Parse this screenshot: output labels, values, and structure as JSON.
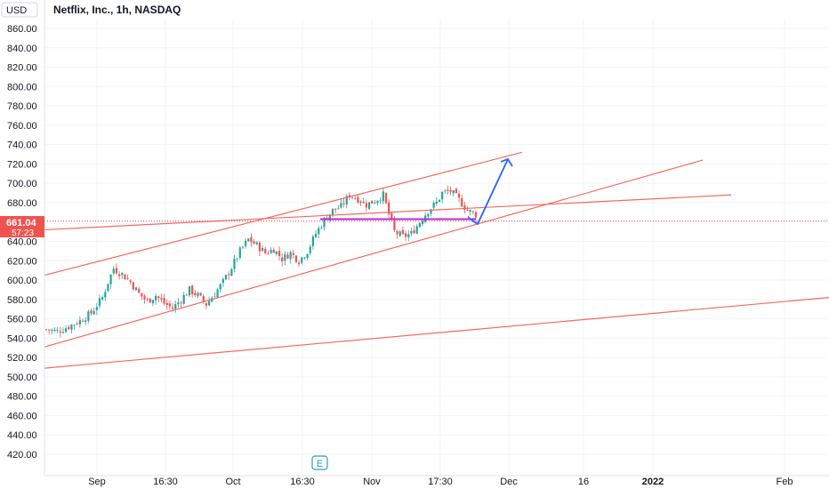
{
  "header": {
    "currency": "USD",
    "title": "Netflix, Inc., 1h, NASDAQ"
  },
  "price_badge": {
    "price": "661.04",
    "countdown": "57:23",
    "color": "#ef5350"
  },
  "earnings_marker": {
    "label": "E",
    "color": "#26a69a"
  },
  "colors": {
    "up": "#26a69a",
    "down": "#ef5350",
    "trend": "#f26b5f",
    "support": "#c026d3",
    "projection": "#2962ff",
    "grid": "#f0f3fa"
  },
  "chart_data": {
    "type": "candlestick",
    "title": "Netflix, Inc., 1h, NASDAQ",
    "ylim": [
      405,
      872
    ],
    "y_ticks": [
      "860.00",
      "840.00",
      "820.00",
      "800.00",
      "780.00",
      "760.00",
      "740.00",
      "720.00",
      "700.00",
      "680.00",
      "660.00",
      "640.00",
      "620.00",
      "600.00",
      "580.00",
      "560.00",
      "540.00",
      "520.00",
      "500.00",
      "480.00",
      "460.00",
      "440.00",
      "420.00"
    ],
    "x_ticks": [
      {
        "label": "Sep",
        "bold": false
      },
      {
        "label": "16:30",
        "bold": false
      },
      {
        "label": "Oct",
        "bold": false
      },
      {
        "label": "16:30",
        "bold": false
      },
      {
        "label": "Nov",
        "bold": false
      },
      {
        "label": "17:30",
        "bold": false
      },
      {
        "label": "Dec",
        "bold": false
      },
      {
        "label": "16",
        "bold": false
      },
      {
        "label": "2022",
        "bold": true
      },
      {
        "label": "Feb",
        "bold": false
      }
    ],
    "price_path": [
      [
        0,
        549
      ],
      [
        4,
        547
      ],
      [
        8,
        552
      ],
      [
        12,
        558
      ],
      [
        16,
        566
      ],
      [
        20,
        582
      ],
      [
        22,
        598
      ],
      [
        24,
        612
      ],
      [
        27,
        606
      ],
      [
        30,
        598
      ],
      [
        33,
        586
      ],
      [
        36,
        578
      ],
      [
        39,
        584
      ],
      [
        42,
        576
      ],
      [
        45,
        571
      ],
      [
        48,
        580
      ],
      [
        51,
        590
      ],
      [
        54,
        584
      ],
      [
        57,
        575
      ],
      [
        60,
        586
      ],
      [
        63,
        598
      ],
      [
        66,
        613
      ],
      [
        69,
        630
      ],
      [
        72,
        642
      ],
      [
        75,
        636
      ],
      [
        78,
        628
      ],
      [
        81,
        632
      ],
      [
        84,
        622
      ],
      [
        87,
        628
      ],
      [
        90,
        620
      ],
      [
        93,
        630
      ],
      [
        96,
        648
      ],
      [
        99,
        662
      ],
      [
        102,
        672
      ],
      [
        105,
        676
      ],
      [
        108,
        688
      ],
      [
        111,
        684
      ],
      [
        114,
        678
      ],
      [
        117,
        682
      ],
      [
        120,
        688
      ],
      [
        122,
        668
      ],
      [
        124,
        650
      ],
      [
        127,
        645
      ],
      [
        130,
        648
      ],
      [
        133,
        660
      ],
      [
        136,
        672
      ],
      [
        139,
        680
      ],
      [
        141,
        690
      ],
      [
        144,
        692
      ],
      [
        147,
        683
      ],
      [
        150,
        672
      ],
      [
        153,
        668
      ]
    ],
    "current_price": 661.04,
    "trend_lines": [
      {
        "p1": [
          50,
          605
        ],
        "p2": [
          587,
          732
        ]
      },
      {
        "p1": [
          50,
          531
        ],
        "p2": [
          790,
          724
        ]
      },
      {
        "p1": [
          50,
          509
        ],
        "p2": [
          932,
          582
        ]
      },
      {
        "p1": [
          50,
          652
        ],
        "p2": [
          822,
          688
        ]
      }
    ],
    "support_line": {
      "p1": [
        360,
        663
      ],
      "p2": [
        535,
        663
      ]
    },
    "projection": [
      [
        530,
        662
      ],
      [
        537,
        658
      ],
      [
        571,
        725
      ]
    ]
  }
}
